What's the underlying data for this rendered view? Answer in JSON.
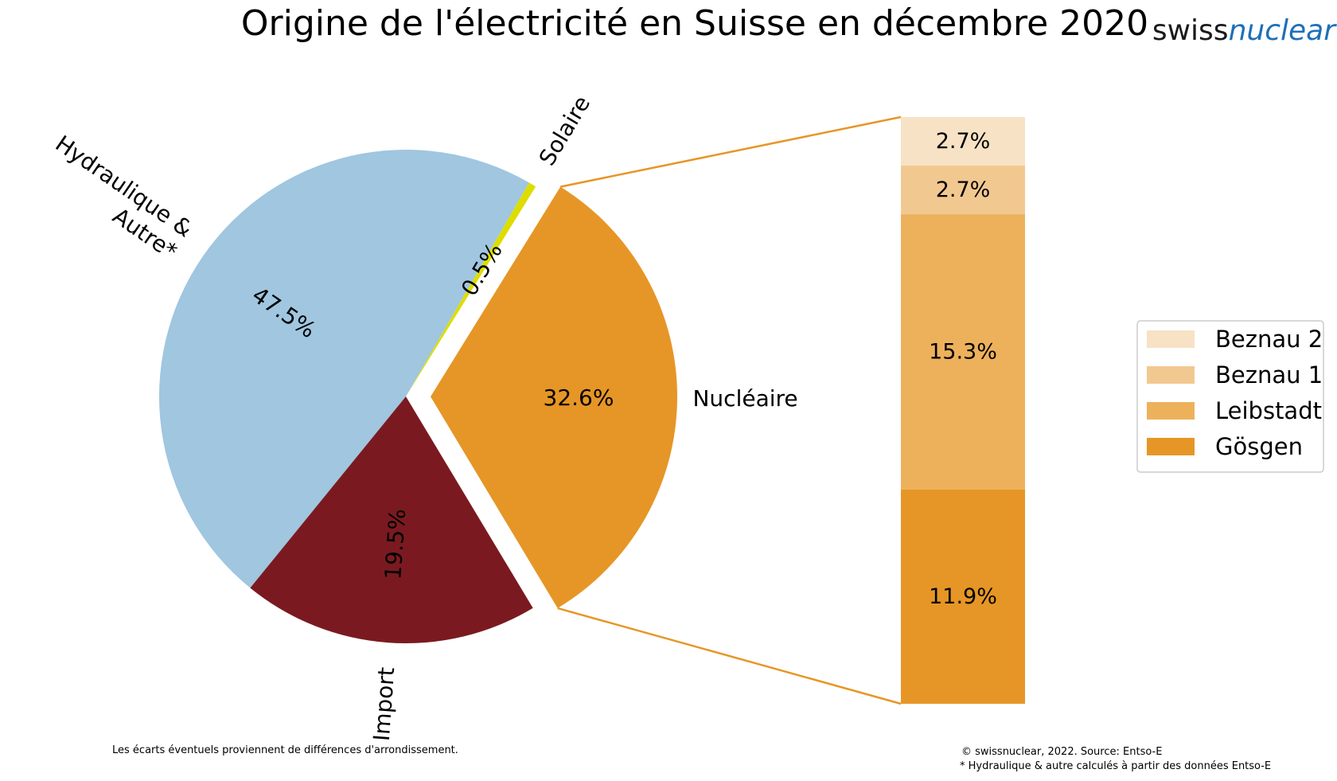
{
  "title": "Origine de l'électricité en Suisse en décembre 2020",
  "logo": {
    "part1": "swiss",
    "part2": "nuclear"
  },
  "chart_data": [
    {
      "type": "pie",
      "slices": [
        {
          "label": "Nucléaire",
          "value": 32.6,
          "pct_label": "32.6%",
          "color": "#e69626",
          "exploded": true
        },
        {
          "label": "Solaire",
          "value": 0.5,
          "pct_label": "0.5%",
          "color": "#dddd00"
        },
        {
          "label": "Hydraulique & Autre*",
          "label_lines": [
            "Hydraulique &",
            "Autre*"
          ],
          "value": 47.5,
          "pct_label": "47.5%",
          "color": "#a0c6e0"
        },
        {
          "label": "Import",
          "value": 19.5,
          "pct_label": "19.5%",
          "color": "#7a1a20"
        }
      ]
    },
    {
      "type": "bar",
      "stacked": true,
      "segments": [
        {
          "name": "Gösgen",
          "value": 11.9,
          "pct_label": "11.9%",
          "color": "#e69626"
        },
        {
          "name": "Leibstadt",
          "value": 15.3,
          "pct_label": "15.3%",
          "color": "#edb15c"
        },
        {
          "name": "Beznau 1",
          "value": 2.7,
          "pct_label": "2.7%",
          "color": "#f2c891"
        },
        {
          "name": "Beznau 2",
          "value": 2.7,
          "pct_label": "2.7%",
          "color": "#f7e2c5"
        }
      ],
      "legend": {
        "position": "right",
        "items": [
          {
            "name": "Beznau 2",
            "color": "#f7e2c5"
          },
          {
            "name": "Beznau 1",
            "color": "#f2c891"
          },
          {
            "name": "Leibstadt",
            "color": "#edb15c"
          },
          {
            "name": "Gösgen",
            "color": "#e69626"
          }
        ]
      }
    }
  ],
  "connector_color": "#e69626",
  "footnotes": {
    "left": "Les écarts éventuels proviennent de différences d'arrondissement.",
    "right1": "© swissnuclear, 2022. Source: Entso-E",
    "right2": "* Hydraulique & autre calculés à partir des données Entso-E"
  }
}
